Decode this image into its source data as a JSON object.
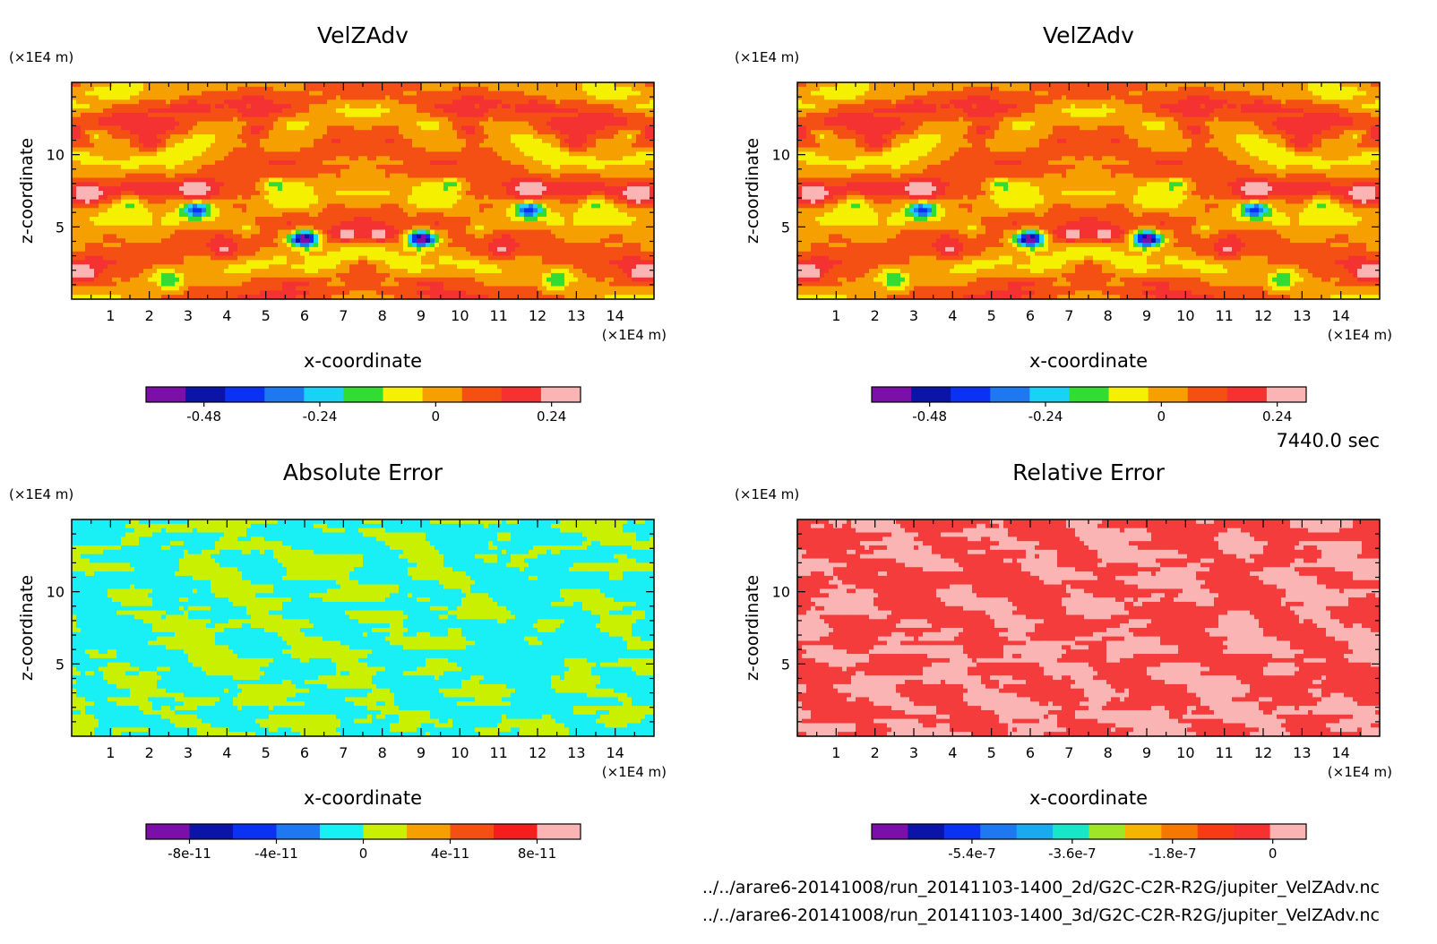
{
  "time_label": "7440.0 sec",
  "file_lines": [
    "../../arare6-20141008/run_20141103-1400_2d/G2C-C2R-R2G/jupiter_VelZAdv.nc",
    "../../arare6-20141008/run_20141103-1400_3d/G2C-C2R-R2G/jupiter_VelZAdv.nc"
  ],
  "chart_data": [
    {
      "type": "heatmap",
      "title": "VelZAdv",
      "xlabel": "x-coordinate",
      "ylabel": "z-coordinate",
      "x_unit": "(×1E4 m)",
      "y_unit": "(×1E4 m)",
      "x_ticks": [
        "1",
        "2",
        "3",
        "4",
        "5",
        "6",
        "7",
        "8",
        "9",
        "10",
        "11",
        "12",
        "13",
        "14"
      ],
      "y_ticks": [
        "5",
        "10"
      ],
      "xlim": [
        0,
        15
      ],
      "ylim": [
        0,
        15
      ],
      "colorbar": {
        "colors": [
          "#7b0fa8",
          "#0a14a6",
          "#0a32f0",
          "#1e78f0",
          "#19d2f5",
          "#32dc32",
          "#f5f000",
          "#f5a000",
          "#f55014",
          "#f53232",
          "#fab4b4"
        ],
        "tick_labels": [
          "-0.48",
          "-0.24",
          "0",
          "0.24"
        ],
        "tick_values": [
          -0.48,
          -0.24,
          0,
          0.24
        ],
        "range": [
          -0.6,
          0.3
        ]
      },
      "pattern": "velzadv"
    },
    {
      "type": "heatmap",
      "title": "VelZAdv",
      "xlabel": "x-coordinate",
      "ylabel": "z-coordinate",
      "x_unit": "(×1E4 m)",
      "y_unit": "(×1E4 m)",
      "x_ticks": [
        "1",
        "2",
        "3",
        "4",
        "5",
        "6",
        "7",
        "8",
        "9",
        "10",
        "11",
        "12",
        "13",
        "14"
      ],
      "y_ticks": [
        "5",
        "10"
      ],
      "xlim": [
        0,
        15
      ],
      "ylim": [
        0,
        15
      ],
      "colorbar": {
        "colors": [
          "#7b0fa8",
          "#0a14a6",
          "#0a32f0",
          "#1e78f0",
          "#19d2f5",
          "#32dc32",
          "#f5f000",
          "#f5a000",
          "#f55014",
          "#f53232",
          "#fab4b4"
        ],
        "tick_labels": [
          "-0.48",
          "-0.24",
          "0",
          "0.24"
        ],
        "tick_values": [
          -0.48,
          -0.24,
          0,
          0.24
        ],
        "range": [
          -0.6,
          0.3
        ]
      },
      "pattern": "velzadv"
    },
    {
      "type": "heatmap",
      "title": "Absolute Error",
      "xlabel": "x-coordinate",
      "ylabel": "z-coordinate",
      "x_unit": "(×1E4 m)",
      "y_unit": "(×1E4 m)",
      "x_ticks": [
        "1",
        "2",
        "3",
        "4",
        "5",
        "6",
        "7",
        "8",
        "9",
        "10",
        "11",
        "12",
        "13",
        "14"
      ],
      "y_ticks": [
        "5",
        "10"
      ],
      "xlim": [
        0,
        15
      ],
      "ylim": [
        0,
        15
      ],
      "colorbar": {
        "colors": [
          "#7b0fa8",
          "#0a14a6",
          "#0a32f0",
          "#1e78f0",
          "#19f0f5",
          "#c8f000",
          "#f5a000",
          "#f55014",
          "#f51e1e",
          "#fab4b4"
        ],
        "tick_labels": [
          "-8e-11",
          "-4e-11",
          "0",
          "4e-11",
          "8e-11"
        ],
        "tick_values": [
          -8e-11,
          -4e-11,
          0,
          4e-11,
          8e-11
        ],
        "range": [
          -1e-10,
          1e-10
        ]
      },
      "pattern": "binary",
      "pattern_colors": [
        "#19f0f5",
        "#c8f000"
      ]
    },
    {
      "type": "heatmap",
      "title": "Relative Error",
      "xlabel": "x-coordinate",
      "ylabel": "z-coordinate",
      "x_unit": "(×1E4 m)",
      "y_unit": "(×1E4 m)",
      "x_ticks": [
        "1",
        "2",
        "3",
        "4",
        "5",
        "6",
        "7",
        "8",
        "9",
        "10",
        "11",
        "12",
        "13",
        "14"
      ],
      "y_ticks": [
        "5",
        "10"
      ],
      "xlim": [
        0,
        15
      ],
      "ylim": [
        0,
        15
      ],
      "colorbar": {
        "colors": [
          "#7b0fa8",
          "#0a14a6",
          "#0a32f0",
          "#1e78f0",
          "#19aaf0",
          "#19e6c8",
          "#a0e628",
          "#f5b400",
          "#f57800",
          "#f53c14",
          "#f53232",
          "#fab4b4"
        ],
        "tick_labels": [
          "-5.4e-7",
          "-3.6e-7",
          "-1.8e-7",
          "0"
        ],
        "tick_values": [
          -5.4e-07,
          -3.6e-07,
          -1.8e-07,
          0
        ],
        "range": [
          -7.2e-07,
          6e-08
        ]
      },
      "pattern": "binary",
      "pattern_colors": [
        "#f53c3c",
        "#fab4b4"
      ]
    }
  ]
}
